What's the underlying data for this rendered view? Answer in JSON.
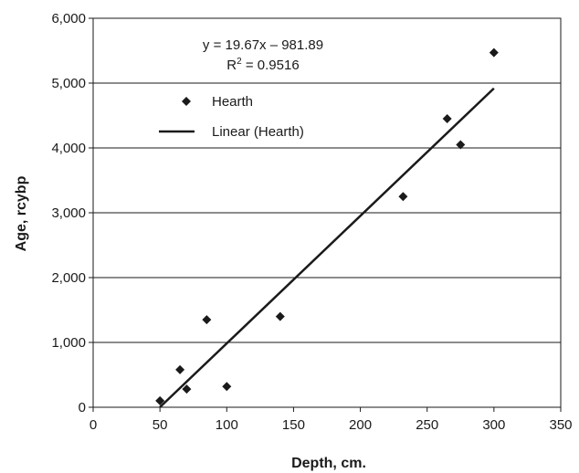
{
  "chart_data": {
    "type": "scatter",
    "xlabel": "Depth, cm.",
    "ylabel": "Age, rcybp",
    "xlim": [
      0,
      350
    ],
    "ylim": [
      0,
      6000
    ],
    "x_ticks": [
      0,
      50,
      100,
      150,
      200,
      250,
      300,
      350
    ],
    "y_ticks": [
      0,
      1000,
      2000,
      3000,
      4000,
      5000,
      6000
    ],
    "x_tick_labels": [
      "0",
      "50",
      "100",
      "150",
      "200",
      "250",
      "300",
      "350"
    ],
    "y_tick_labels": [
      "0",
      "1,000",
      "2,000",
      "3,000",
      "4,000",
      "5,000",
      "6,000"
    ],
    "grid": "horizontal",
    "legend_position": "top-left",
    "series": [
      {
        "name": "Hearth",
        "marker": "diamond",
        "color": "#1a1a1a",
        "x": [
          50,
          65,
          70,
          85,
          100,
          140,
          232,
          265,
          275,
          300
        ],
        "y": [
          100,
          580,
          280,
          1350,
          320,
          1400,
          3250,
          4450,
          4050,
          5470
        ]
      },
      {
        "name": "Linear (Hearth)",
        "type": "line",
        "color": "#1a1a1a",
        "x": [
          50,
          300
        ],
        "y": [
          1.61,
          4919.11
        ]
      }
    ],
    "annotations": {
      "equation": "y = 19.67x – 981.89",
      "r2_prefix": "R",
      "r2_sup": "2",
      "r2_value": " = 0.9516"
    }
  }
}
